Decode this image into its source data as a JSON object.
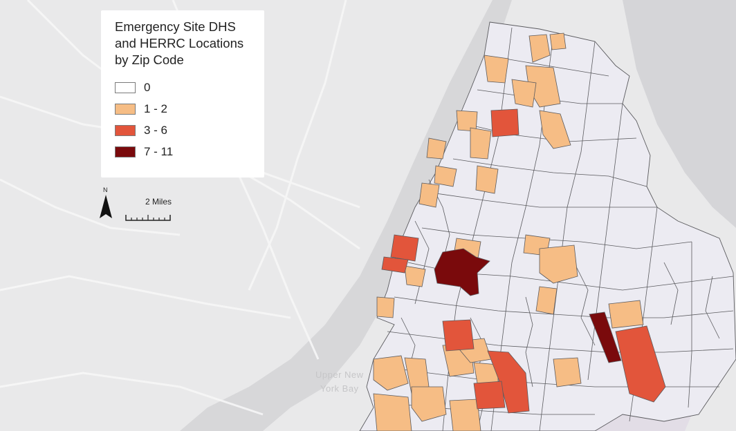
{
  "legend": {
    "title_lines": [
      "Emergency Site DHS",
      "and HERRC Locations",
      "by Zip Code"
    ],
    "items": [
      {
        "label": "0",
        "color": "#ffffff"
      },
      {
        "label": "1 - 2",
        "color": "#f6bd85"
      },
      {
        "label": "3 - 6",
        "color": "#e2553b"
      },
      {
        "label": "7 - 11",
        "color": "#7a0a0c"
      }
    ]
  },
  "north_arrow": {
    "letter": "N"
  },
  "scale_bar": {
    "label": "2 Miles"
  },
  "water_labels": {
    "line1": "Upper New",
    "line2": "York Bay"
  },
  "colors": {
    "land": "#e9e9ea",
    "water": "#d7d7d9",
    "zip_base": "#ecebf2",
    "zip_border": "#5a5a5e",
    "class_1_2": "#f6bd85",
    "class_3_6": "#e2553b",
    "class_7_11": "#7a0a0c"
  }
}
